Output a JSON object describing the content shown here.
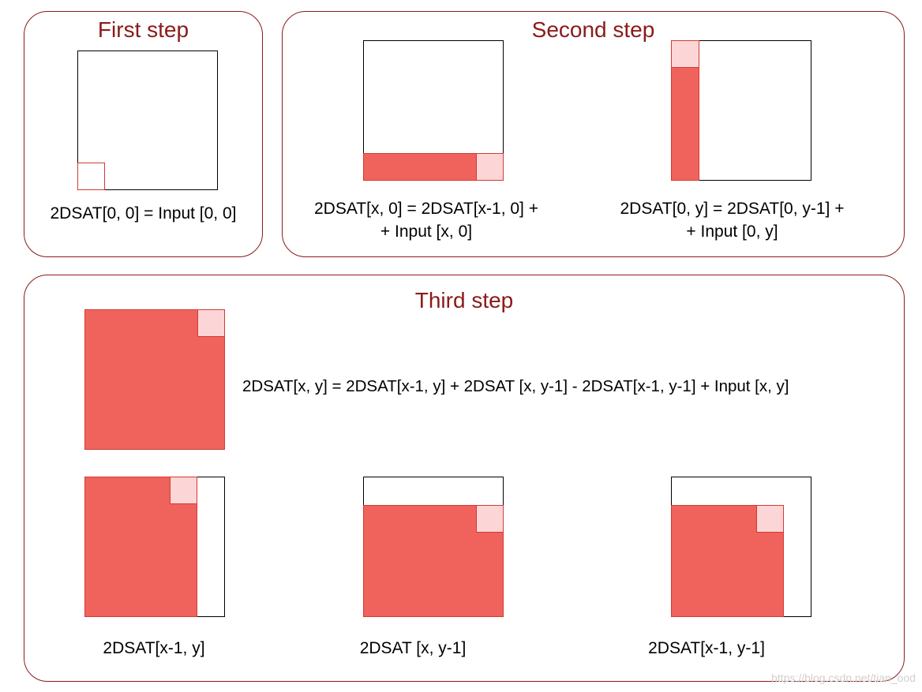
{
  "first": {
    "title": "First step",
    "formula": "2DSAT[0, 0] = Input [0, 0]"
  },
  "second": {
    "title": "Second step",
    "formula_left_1": "2DSAT[x, 0] = 2DSAT[x-1, 0] +",
    "formula_left_2": "+ Input [x, 0]",
    "formula_right_1": "2DSAT[0, y] = 2DSAT[0, y-1] +",
    "formula_right_2": "+ Input [0, y]"
  },
  "third": {
    "title": "Third step",
    "formula": "2DSAT[x, y] = 2DSAT[x-1, y] + 2DSAT [x, y-1] - 2DSAT[x-1, y-1] + Input [x, y]",
    "caption_left": "2DSAT[x-1, y]",
    "caption_middle": "2DSAT [x, y-1]",
    "caption_right": "2DSAT[x-1, y-1]"
  },
  "colors": {
    "panel_border": "#8b1a1a",
    "fill": "#f0635c",
    "cell": "#fcd6d6"
  },
  "watermark": "https://blog.csdn.net/tian_ood"
}
